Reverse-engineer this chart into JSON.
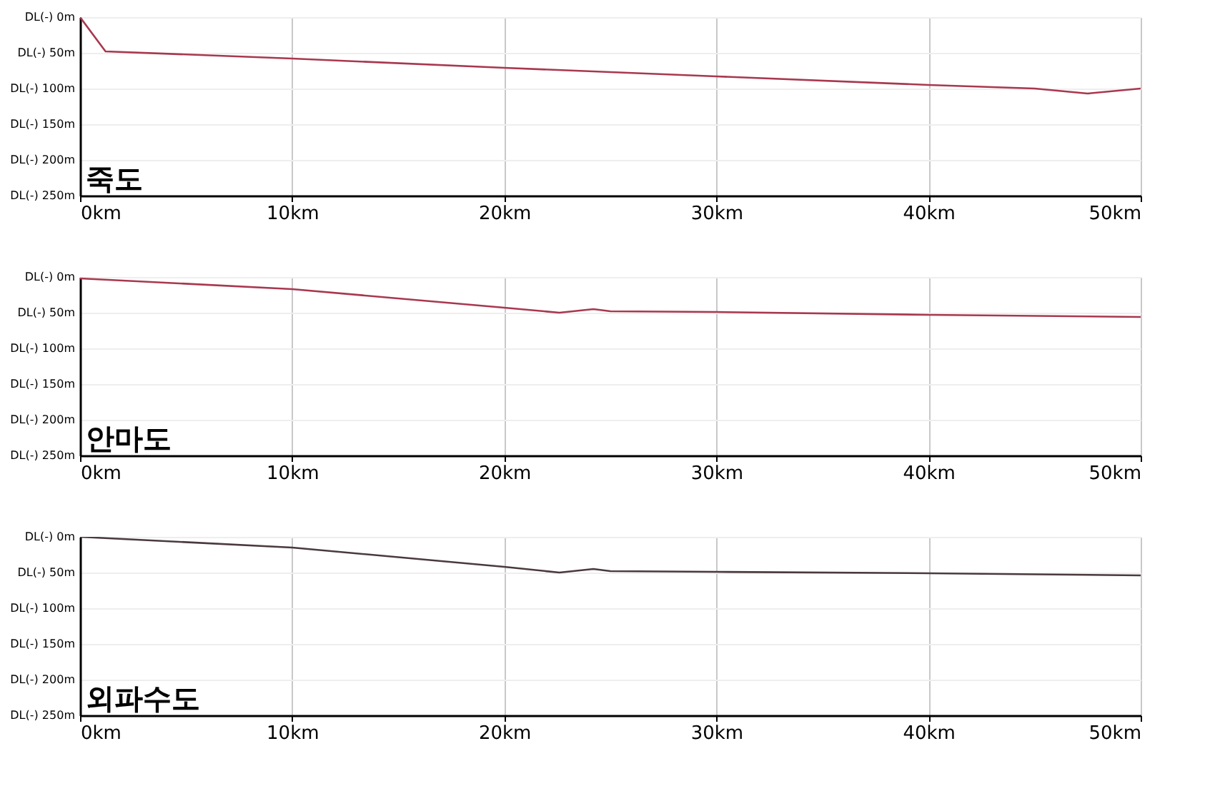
{
  "chart_data": [
    {
      "type": "line",
      "title": "죽도",
      "x": [
        0,
        1.2,
        10,
        20,
        30,
        40,
        45,
        47.5,
        50
      ],
      "series": [
        {
          "color": "#a8384f",
          "values": [
            0,
            48,
            58,
            71,
            83,
            95,
            100,
            107,
            100
          ]
        }
      ],
      "xlim": [
        0,
        50
      ],
      "xticks": [
        {
          "value": 0,
          "label": "0km"
        },
        {
          "value": 10,
          "label": "10km"
        },
        {
          "value": 20,
          "label": "20km"
        },
        {
          "value": 30,
          "label": "30km"
        },
        {
          "value": 40,
          "label": "40km"
        },
        {
          "value": 50,
          "label": "50km"
        }
      ],
      "ylim": [
        250,
        0
      ],
      "yticks": [
        {
          "value": 0,
          "label": "DL(-) 0m"
        },
        {
          "value": 50,
          "label": "DL(-) 50m"
        },
        {
          "value": 100,
          "label": "DL(-) 100m"
        },
        {
          "value": 150,
          "label": "DL(-) 150m"
        },
        {
          "value": 200,
          "label": "DL(-) 200m"
        },
        {
          "value": 250,
          "label": "DL(-) 250m"
        }
      ],
      "grid": true,
      "marker": "none"
    },
    {
      "type": "line",
      "title": "안마도",
      "x": [
        0,
        10,
        20,
        22.6,
        24.2,
        25,
        30,
        40,
        50
      ],
      "series": [
        {
          "color": "#a8384f",
          "values": [
            2,
            17,
            43,
            50,
            45,
            48,
            49,
            53,
            56
          ]
        }
      ],
      "xlim": [
        0,
        50
      ],
      "xticks": [
        {
          "value": 0,
          "label": "0km"
        },
        {
          "value": 10,
          "label": "10km"
        },
        {
          "value": 20,
          "label": "20km"
        },
        {
          "value": 30,
          "label": "30km"
        },
        {
          "value": 40,
          "label": "40km"
        },
        {
          "value": 50,
          "label": "50km"
        }
      ],
      "ylim": [
        250,
        0
      ],
      "yticks": [
        {
          "value": 0,
          "label": "DL(-) 0m"
        },
        {
          "value": 50,
          "label": "DL(-) 50m"
        },
        {
          "value": 100,
          "label": "DL(-) 100m"
        },
        {
          "value": 150,
          "label": "DL(-) 150m"
        },
        {
          "value": 200,
          "label": "DL(-) 200m"
        },
        {
          "value": 250,
          "label": "DL(-) 250m"
        }
      ],
      "grid": true,
      "marker": "none"
    },
    {
      "type": "line",
      "title": "외파수도",
      "x": [
        0,
        10,
        20,
        22.6,
        24.2,
        25,
        30,
        40,
        50
      ],
      "series": [
        {
          "color": "#4a3a3e",
          "values": [
            0,
            15,
            42,
            50,
            45,
            48,
            49,
            51,
            54
          ]
        }
      ],
      "xlim": [
        0,
        50
      ],
      "xticks": [
        {
          "value": 0,
          "label": "0km"
        },
        {
          "value": 10,
          "label": "10km"
        },
        {
          "value": 20,
          "label": "20km"
        },
        {
          "value": 30,
          "label": "30km"
        },
        {
          "value": 40,
          "label": "40km"
        },
        {
          "value": 50,
          "label": "50km"
        }
      ],
      "ylim": [
        250,
        0
      ],
      "yticks": [
        {
          "value": 0,
          "label": "DL(-) 0m"
        },
        {
          "value": 50,
          "label": "DL(-) 50m"
        },
        {
          "value": 100,
          "label": "DL(-) 100m"
        },
        {
          "value": 150,
          "label": "DL(-) 150m"
        },
        {
          "value": 200,
          "label": "DL(-) 200m"
        },
        {
          "value": 250,
          "label": "DL(-) 250m"
        }
      ],
      "grid": true,
      "marker": "none"
    }
  ]
}
